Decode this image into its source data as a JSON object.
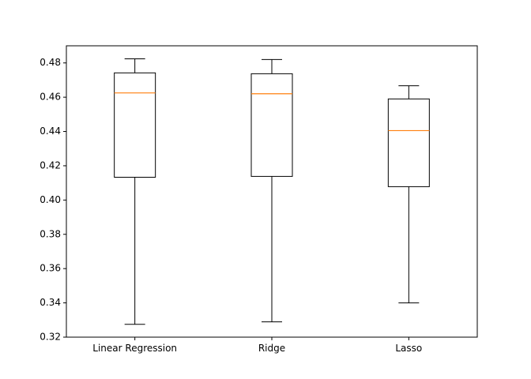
{
  "chart_data": {
    "type": "box",
    "title": "",
    "xlabel": "",
    "ylabel": "",
    "ylim": [
      0.32,
      0.49
    ],
    "yticks": [
      0.32,
      0.34,
      0.36,
      0.38,
      0.4,
      0.42,
      0.44,
      0.46,
      0.48
    ],
    "ytick_labels": [
      "0.32",
      "0.34",
      "0.36",
      "0.38",
      "0.40",
      "0.42",
      "0.44",
      "0.46",
      "0.48"
    ],
    "grid": false,
    "categories": [
      "Linear Regression",
      "Ridge",
      "Lasso"
    ],
    "boxes": [
      {
        "category": "Linear Regression",
        "whisker_low": 0.3275,
        "q1": 0.4133,
        "median": 0.4625,
        "q3": 0.4742,
        "whisker_high": 0.4824
      },
      {
        "category": "Ridge",
        "whisker_low": 0.3289,
        "q1": 0.4138,
        "median": 0.462,
        "q3": 0.4737,
        "whisker_high": 0.482
      },
      {
        "category": "Lasso",
        "whisker_low": 0.34,
        "q1": 0.4078,
        "median": 0.4405,
        "q3": 0.459,
        "whisker_high": 0.4667
      }
    ],
    "colors": {
      "box": "#000000",
      "median": "#ff7f0e",
      "axes": "#000000",
      "background": "#ffffff"
    }
  }
}
